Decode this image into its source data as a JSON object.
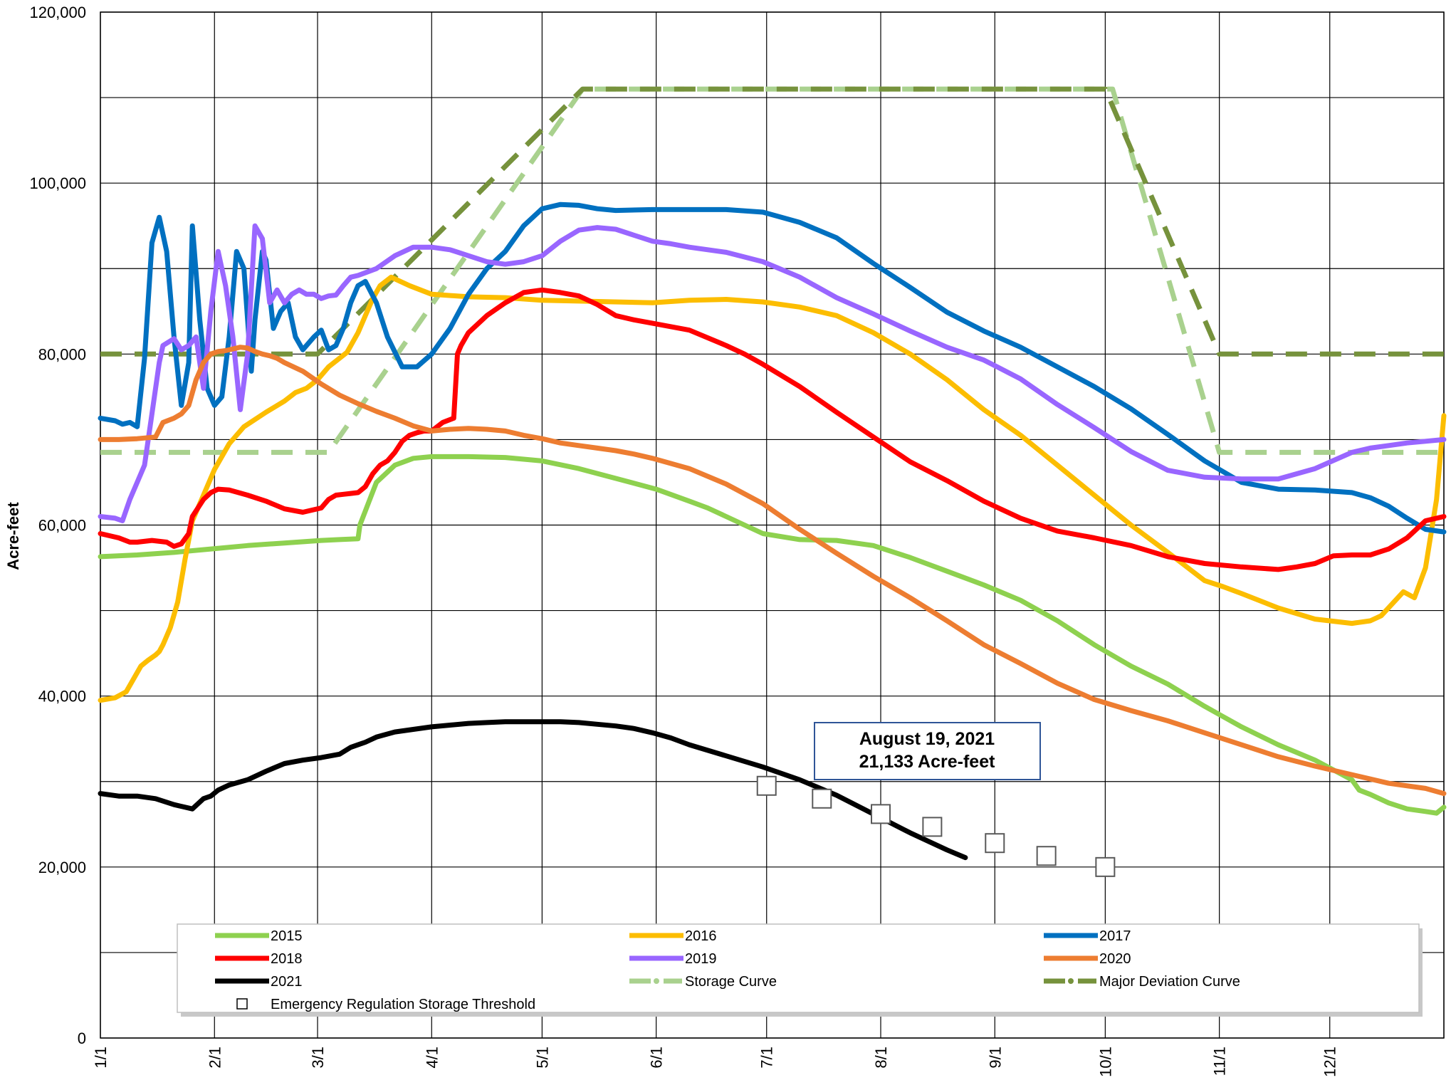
{
  "chart_data": {
    "type": "line",
    "title": "",
    "xlabel": "",
    "ylabel": "Acre-feet",
    "ylim": [
      0,
      120000
    ],
    "xlim": [
      0,
      365
    ],
    "grid": true,
    "legend_position": "bottom",
    "y_ticks": [
      0,
      20000,
      40000,
      60000,
      80000,
      100000,
      120000
    ],
    "y_tick_labels": [
      "0",
      "20,000",
      "40,000",
      "60,000",
      "80,000",
      "100,000",
      "120,000"
    ],
    "y_gridlines": [
      0,
      10000,
      20000,
      30000,
      40000,
      50000,
      60000,
      70000,
      80000,
      90000,
      100000,
      110000,
      120000
    ],
    "x_ticks": [
      0,
      31,
      59,
      90,
      120,
      151,
      181,
      212,
      243,
      273,
      304,
      334,
      365
    ],
    "x_tick_labels": [
      "1/1",
      "2/1",
      "3/1",
      "4/1",
      "5/1",
      "6/1",
      "7/1",
      "8/1",
      "9/1",
      "10/1",
      "11/1",
      "12/1",
      ""
    ],
    "annotation": {
      "line1": "August 19, 2021",
      "line2": "21,133 Acre-feet"
    },
    "series": [
      {
        "name": "2015",
        "color": "#8ed14f",
        "style": "solid",
        "x": [
          0,
          10,
          20,
          30,
          40,
          50,
          60,
          65,
          70,
          70.5,
          75,
          80,
          85,
          90,
          100,
          110,
          120,
          130,
          151,
          160,
          165,
          170,
          175,
          180,
          190,
          200,
          210,
          220,
          230,
          240,
          250,
          260,
          270,
          280,
          290,
          300,
          305,
          310,
          320,
          330,
          340,
          342,
          345,
          350,
          355,
          360,
          363,
          365
        ],
        "y": [
          56300,
          56500,
          56800,
          57200,
          57600,
          57900,
          58200,
          58300,
          58400,
          60000,
          65000,
          67000,
          67800,
          68000,
          68000,
          67900,
          67500,
          66600,
          64200,
          62800,
          62000,
          61000,
          60000,
          59000,
          58300,
          58200,
          57600,
          56200,
          54600,
          53000,
          51200,
          48800,
          46000,
          43500,
          41400,
          38800,
          37600,
          36400,
          34300,
          32500,
          30200,
          29000,
          28500,
          27500,
          26800,
          26500,
          26300,
          27000
        ]
      },
      {
        "name": "2016",
        "color": "#fcbd00",
        "style": "solid",
        "x": [
          0,
          4,
          7,
          11,
          13,
          15,
          16,
          17,
          19,
          21,
          23,
          25,
          28,
          31,
          35,
          39,
          45,
          50,
          53,
          56,
          59,
          62,
          67,
          70,
          72,
          74,
          76,
          79,
          84,
          90,
          100,
          110,
          120,
          130,
          150,
          160,
          170,
          180,
          190,
          200,
          210,
          220,
          230,
          240,
          250,
          260,
          270,
          280,
          290,
          300,
          305,
          310,
          320,
          330,
          340,
          345,
          348,
          351,
          354,
          357,
          360,
          363,
          365
        ],
        "y": [
          39500,
          39800,
          40500,
          43500,
          44200,
          44800,
          45200,
          46000,
          48000,
          51000,
          56000,
          60500,
          63500,
          66500,
          69500,
          71500,
          73200,
          74500,
          75500,
          76000,
          77000,
          78500,
          80200,
          82500,
          84500,
          86500,
          88000,
          89000,
          88000,
          87000,
          86700,
          86600,
          86300,
          86200,
          86000,
          86300,
          86400,
          86100,
          85500,
          84500,
          82500,
          80000,
          77000,
          73500,
          70500,
          67000,
          63500,
          60000,
          56800,
          53500,
          52800,
          52000,
          50300,
          49000,
          48500,
          48800,
          49400,
          50800,
          52200,
          51500,
          55000,
          63000,
          72800
        ]
      },
      {
        "name": "2017",
        "color": "#0070c0",
        "style": "solid",
        "x": [
          0,
          4,
          6,
          8,
          10,
          12,
          14,
          16,
          18,
          20,
          22,
          24,
          25,
          27,
          29,
          31,
          33,
          35,
          37,
          39,
          41,
          42,
          44,
          45,
          47,
          49,
          51,
          53,
          55,
          57,
          58,
          60,
          62,
          64,
          66,
          68,
          70,
          72,
          75,
          78,
          82,
          86,
          90,
          95,
          100,
          105,
          110,
          115,
          120,
          125,
          130,
          135,
          140,
          150,
          160,
          170,
          180,
          190,
          200,
          210,
          220,
          230,
          240,
          250,
          260,
          270,
          280,
          290,
          300,
          310,
          320,
          330,
          340,
          345,
          350,
          355,
          360,
          365
        ],
        "y": [
          72500,
          72200,
          71800,
          72000,
          71500,
          79500,
          93000,
          96000,
          92000,
          82000,
          74000,
          79000,
          95000,
          84000,
          76000,
          74000,
          75000,
          82000,
          92000,
          90000,
          78000,
          84000,
          92000,
          91000,
          83000,
          85000,
          86000,
          82000,
          80500,
          81500,
          82000,
          82800,
          80500,
          81000,
          83000,
          86000,
          88000,
          88500,
          86000,
          82000,
          78500,
          78500,
          80000,
          83000,
          87000,
          90000,
          92000,
          95000,
          97000,
          97500,
          97400,
          97000,
          96800,
          96900,
          96900,
          96900,
          96600,
          95400,
          93600,
          90600,
          87800,
          84900,
          82700,
          80800,
          78500,
          76200,
          73600,
          70600,
          67500,
          65000,
          64200,
          64100,
          63800,
          63200,
          62200,
          60800,
          59500,
          59200
        ]
      },
      {
        "name": "2018",
        "color": "#ff0000",
        "style": "solid",
        "x": [
          0,
          5,
          8,
          10,
          14,
          18,
          20,
          22,
          24,
          25,
          28,
          30,
          32,
          35,
          40,
          45,
          50,
          55,
          60,
          62,
          64,
          66,
          68,
          70,
          72,
          74,
          76,
          78,
          80,
          82,
          84,
          86,
          88,
          90,
          93,
          96,
          97,
          98,
          100,
          105,
          110,
          115,
          120,
          125,
          130,
          135,
          140,
          145,
          150,
          160,
          170,
          175,
          180,
          190,
          200,
          210,
          220,
          230,
          240,
          250,
          260,
          270,
          280,
          290,
          300,
          310,
          320,
          325,
          330,
          335,
          340,
          345,
          350,
          355,
          360,
          365
        ],
        "y": [
          59000,
          58500,
          58000,
          58000,
          58200,
          58000,
          57500,
          57800,
          59000,
          61000,
          63000,
          63800,
          64200,
          64100,
          63500,
          62800,
          61900,
          61500,
          62000,
          63000,
          63500,
          63600,
          63700,
          63800,
          64500,
          66000,
          67000,
          67500,
          68500,
          69800,
          70500,
          70800,
          71000,
          71000,
          72000,
          72500,
          80000,
          81000,
          82500,
          84500,
          86000,
          87200,
          87500,
          87200,
          86800,
          85800,
          84500,
          84000,
          83600,
          82800,
          81000,
          80000,
          78800,
          76200,
          73200,
          70300,
          67400,
          65200,
          62800,
          60800,
          59300,
          58500,
          57600,
          56300,
          55500,
          55100,
          54800,
          55100,
          55500,
          56400,
          56500,
          56500,
          57200,
          58500,
          60500,
          61000
        ]
      },
      {
        "name": "2019",
        "color": "#9966ff",
        "style": "solid",
        "x": [
          0,
          4,
          6,
          8,
          10,
          12,
          14,
          16,
          17,
          20,
          22,
          24,
          26,
          28,
          30,
          32,
          34,
          36,
          38,
          40,
          42,
          44,
          46,
          48,
          50,
          52,
          54,
          56,
          58,
          60,
          62,
          64,
          66,
          68,
          70,
          75,
          80,
          85,
          88,
          90,
          95,
          100,
          105,
          110,
          115,
          120,
          125,
          130,
          135,
          140,
          145,
          150,
          155,
          160,
          170,
          180,
          190,
          200,
          210,
          220,
          230,
          240,
          250,
          260,
          270,
          280,
          290,
          300,
          310,
          320,
          330,
          340,
          345,
          350,
          355,
          360,
          365
        ],
        "y": [
          61000,
          60800,
          60500,
          63000,
          65000,
          67000,
          73000,
          79000,
          81000,
          81800,
          80500,
          81000,
          82000,
          76000,
          85000,
          92000,
          88000,
          82000,
          73500,
          80000,
          95000,
          93500,
          86000,
          87500,
          86000,
          87000,
          87500,
          87000,
          87000,
          86500,
          86800,
          86900,
          88000,
          89000,
          89200,
          90000,
          91500,
          92500,
          92500,
          92500,
          92200,
          91500,
          90800,
          90500,
          90800,
          91500,
          93200,
          94500,
          94800,
          94600,
          93900,
          93200,
          92900,
          92500,
          91900,
          90800,
          89000,
          86600,
          84700,
          82700,
          80800,
          79300,
          77100,
          74100,
          71400,
          68600,
          66400,
          65600,
          65400,
          65400,
          66600,
          68500,
          69000,
          69300,
          69600,
          69800,
          70000
        ]
      },
      {
        "name": "2020",
        "color": "#ed7d31",
        "style": "solid",
        "x": [
          0,
          5,
          10,
          15,
          17,
          20,
          22,
          24,
          26,
          28,
          30,
          32,
          34,
          36,
          38,
          40,
          42,
          44,
          46,
          48,
          50,
          55,
          60,
          65,
          70,
          75,
          80,
          85,
          90,
          95,
          100,
          105,
          110,
          115,
          120,
          125,
          130,
          135,
          140,
          145,
          150,
          155,
          160,
          170,
          180,
          190,
          200,
          210,
          220,
          230,
          240,
          250,
          260,
          270,
          280,
          290,
          300,
          310,
          320,
          330,
          340,
          350,
          360,
          365
        ],
        "y": [
          70000,
          70000,
          70100,
          70300,
          72000,
          72500,
          73000,
          74000,
          77000,
          79000,
          80000,
          80300,
          80400,
          80600,
          80800,
          80700,
          80300,
          80000,
          79800,
          79500,
          79000,
          78000,
          76500,
          75200,
          74200,
          73300,
          72500,
          71600,
          71000,
          71200,
          71300,
          71200,
          71000,
          70500,
          70100,
          69600,
          69300,
          69000,
          68700,
          68300,
          67800,
          67200,
          66600,
          64800,
          62500,
          59500,
          56700,
          54000,
          51500,
          48800,
          46000,
          43800,
          41500,
          39600,
          38300,
          37100,
          35700,
          34300,
          32900,
          31800,
          30800,
          29800,
          29200,
          28600
        ]
      },
      {
        "name": "2021",
        "color": "#000000",
        "style": "solid",
        "x": [
          0,
          5,
          10,
          15,
          20,
          25,
          28,
          30,
          32,
          35,
          40,
          45,
          50,
          55,
          60,
          65,
          68,
          70,
          72,
          75,
          80,
          85,
          90,
          95,
          100,
          105,
          110,
          115,
          120,
          125,
          130,
          135,
          140,
          145,
          150,
          155,
          160,
          170,
          180,
          190,
          200,
          210,
          220,
          230,
          235
        ],
        "y": [
          28600,
          28300,
          28300,
          28000,
          27300,
          26800,
          28000,
          28300,
          29000,
          29600,
          30200,
          31200,
          32100,
          32500,
          32800,
          33200,
          34000,
          34300,
          34600,
          35200,
          35800,
          36100,
          36400,
          36600,
          36800,
          36900,
          37000,
          37000,
          37000,
          37000,
          36900,
          36700,
          36500,
          36200,
          35700,
          35100,
          34300,
          33000,
          31700,
          30200,
          28400,
          26200,
          24000,
          22000,
          21100
        ]
      },
      {
        "name": "Storage Curve",
        "color": "#a9d18e",
        "style": "dash",
        "x": [
          0,
          62,
          131,
          275,
          304,
          365
        ],
        "y": [
          68500,
          68500,
          111000,
          111000,
          68500,
          68500
        ]
      },
      {
        "name": "Major Deviation Curve",
        "color": "#76923c",
        "style": "dash",
        "x": [
          0,
          59,
          131,
          273,
          304,
          365
        ],
        "y": [
          80000,
          80000,
          111000,
          111000,
          80000,
          80000
        ]
      },
      {
        "name": "Emergency Regulation Storage Threshold",
        "color": "#000000",
        "style": "marker",
        "x": [
          181,
          196,
          212,
          226,
          243,
          257,
          273
        ],
        "y": [
          29500,
          28000,
          26200,
          24700,
          22800,
          21300,
          20000
        ]
      }
    ]
  }
}
